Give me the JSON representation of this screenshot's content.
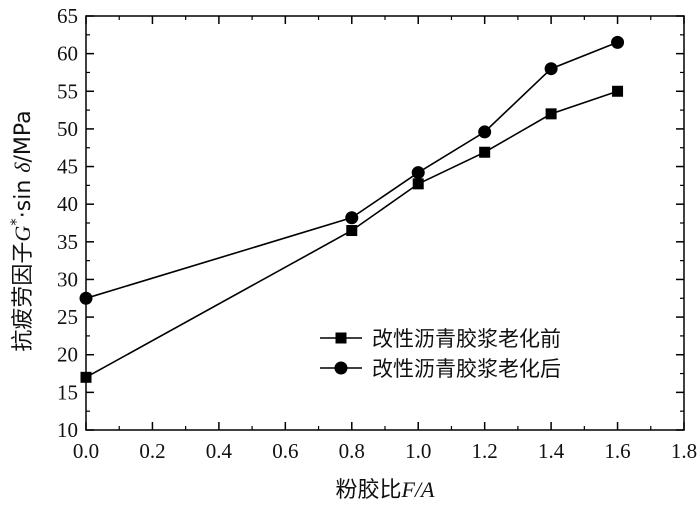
{
  "chart_data": {
    "type": "line",
    "xlabel": "粉胶比F/A",
    "xlabel_parts": {
      "prefix": "粉胶比",
      "var": "F/A"
    },
    "ylabel": "抗疲劳因子G*·sin δ/MPa",
    "ylabel_parts": {
      "prefix": "抗疲劳因子",
      "g": "G",
      "star": "*",
      "mid": "·sin ",
      "delta": "δ",
      "unit": "/MPa"
    },
    "xlim": [
      0.0,
      1.8
    ],
    "ylim": [
      10,
      65
    ],
    "x_ticks": [
      "0.0",
      "0.2",
      "0.4",
      "0.6",
      "0.8",
      "1.0",
      "1.2",
      "1.4",
      "1.6",
      "1.8"
    ],
    "y_ticks": [
      "10",
      "15",
      "20",
      "25",
      "30",
      "35",
      "40",
      "45",
      "50",
      "55",
      "60",
      "65"
    ],
    "legend_position": "lower-right",
    "grid": false,
    "series": [
      {
        "name": "改性沥青胶浆老化前",
        "marker": "square",
        "color": "#000000",
        "x": [
          0.0,
          0.8,
          1.0,
          1.2,
          1.4,
          1.6
        ],
        "y": [
          17.0,
          36.5,
          42.7,
          46.9,
          52.0,
          55.0
        ]
      },
      {
        "name": "改性沥青胶浆老化后",
        "marker": "circle",
        "color": "#000000",
        "x": [
          0.0,
          0.8,
          1.0,
          1.2,
          1.4,
          1.6
        ],
        "y": [
          27.5,
          38.2,
          44.2,
          49.6,
          58.0,
          61.5
        ]
      }
    ]
  }
}
